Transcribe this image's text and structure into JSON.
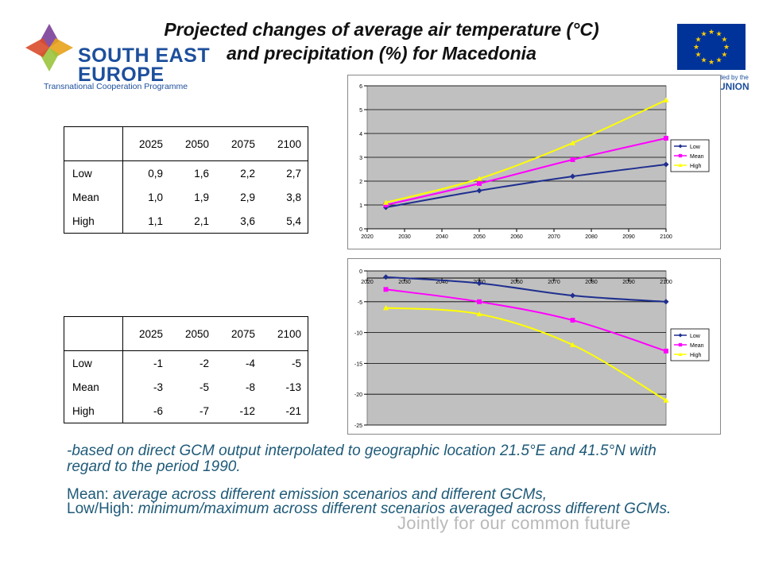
{
  "header": {
    "title_line1": "Projected changes of average air temperature (°C)",
    "title_line2": "and precipitation (%) for Macedonia"
  },
  "logo": {
    "line1": "SOUTH EAST",
    "line2": "EUROPE",
    "line3": "Transnational Cooperation Programme",
    "petal_colors": [
      "#7b3f98",
      "#e8a21b",
      "#9ac43c",
      "#d94b2b"
    ]
  },
  "eu": {
    "line1": "nded by the",
    "line2": "UNION",
    "flag_color": "#003399",
    "star_color": "#ffcc00"
  },
  "temp_table": {
    "columns": [
      "2025",
      "2050",
      "2075",
      "2100"
    ],
    "rows": [
      {
        "label": "Low",
        "values": [
          "0,9",
          "1,6",
          "2,2",
          "2,7"
        ]
      },
      {
        "label": "Mean",
        "values": [
          "1,0",
          "1,9",
          "2,9",
          "3,8"
        ]
      },
      {
        "label": "High",
        "values": [
          "1,1",
          "2,1",
          "3,6",
          "5,4"
        ]
      }
    ]
  },
  "precip_table": {
    "columns": [
      "2025",
      "2050",
      "2075",
      "2100"
    ],
    "rows": [
      {
        "label": "Low",
        "values": [
          "-1",
          "-2",
          "-4",
          "-5"
        ]
      },
      {
        "label": "Mean",
        "values": [
          "-3",
          "-5",
          "-8",
          "-13"
        ]
      },
      {
        "label": "High",
        "values": [
          "-6",
          "-7",
          "-12",
          "-21"
        ]
      }
    ]
  },
  "chart_data": [
    {
      "type": "line",
      "x": [
        2025,
        2050,
        2075,
        2100
      ],
      "xlim": [
        2020,
        2100
      ],
      "xticks": [
        2020,
        2030,
        2040,
        2050,
        2060,
        2070,
        2080,
        2090,
        2100
      ],
      "ylim": [
        0,
        6
      ],
      "yticks": [
        0,
        1,
        2,
        3,
        4,
        5,
        6
      ],
      "grid": true,
      "legend_position": "right",
      "series": [
        {
          "name": "Low",
          "values": [
            0.9,
            1.6,
            2.2,
            2.7
          ],
          "color": "#1f2f8f",
          "marker": "diamond"
        },
        {
          "name": "Mean",
          "values": [
            1.0,
            1.9,
            2.9,
            3.8
          ],
          "color": "#ff00ff",
          "marker": "square"
        },
        {
          "name": "High",
          "values": [
            1.1,
            2.1,
            3.6,
            5.4
          ],
          "color": "#ffff00",
          "marker": "triangle"
        }
      ]
    },
    {
      "type": "line",
      "x": [
        2025,
        2050,
        2075,
        2100
      ],
      "xlim": [
        2020,
        2100
      ],
      "xticks": [
        2020,
        2030,
        2040,
        2050,
        2060,
        2070,
        2080,
        2090,
        2100
      ],
      "ylim": [
        -25,
        0
      ],
      "yticks": [
        0,
        -5,
        -10,
        -15,
        -20,
        -25
      ],
      "grid": true,
      "legend_position": "right",
      "series": [
        {
          "name": "Low",
          "values": [
            -1,
            -2,
            -4,
            -5
          ],
          "color": "#1f2f8f",
          "marker": "diamond"
        },
        {
          "name": "Mean",
          "values": [
            -3,
            -5,
            -8,
            -13
          ],
          "color": "#ff00ff",
          "marker": "square"
        },
        {
          "name": "High",
          "values": [
            -6,
            -7,
            -12,
            -21
          ],
          "color": "#ffff00",
          "marker": "triangle"
        }
      ]
    }
  ],
  "notes": {
    "based": "-based on direct GCM output interpolated to geographic location 21.5°E and 41.5°N with regard to the period 1990.",
    "mean_label": "Mean: ",
    "mean_text": "average across different emission scenarios and different GCMs,",
    "lowhigh_label": "Low/High: ",
    "lowhigh_text": "minimum/maximum across different scenarios averaged across different GCMs."
  },
  "slogan": "Jointly for our common future"
}
